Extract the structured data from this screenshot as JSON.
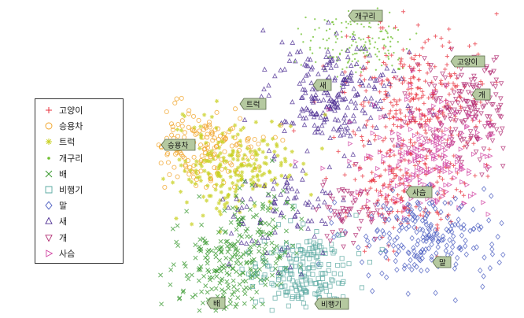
{
  "chart_data": {
    "type": "scatter",
    "title": "",
    "xlabel": "",
    "ylabel": "",
    "grid": false,
    "legend_placement": "left",
    "series": [
      {
        "name": "고양이",
        "marker": "plus",
        "color": "#e8303c"
      },
      {
        "name": "승용차",
        "marker": "circle",
        "color": "#f0a020"
      },
      {
        "name": "트럭",
        "marker": "star",
        "color": "#c8d020"
      },
      {
        "name": "개구리",
        "marker": "dot",
        "color": "#70c030"
      },
      {
        "name": "배",
        "marker": "x",
        "color": "#3a9a30"
      },
      {
        "name": "비행기",
        "marker": "square",
        "color": "#5aa8a0"
      },
      {
        "name": "말",
        "marker": "diamond",
        "color": "#4a5cc0"
      },
      {
        "name": "새",
        "marker": "triangle-up",
        "color": "#4a2a90"
      },
      {
        "name": "개",
        "marker": "triangle-down",
        "color": "#b02a70"
      },
      {
        "name": "사슴",
        "marker": "triangle-right",
        "color": "#d040a0"
      }
    ],
    "cluster_labels": [
      "개구리",
      "고양이",
      "새",
      "개",
      "트럭",
      "승용차",
      "사슴",
      "말",
      "배",
      "비행기"
    ]
  }
}
